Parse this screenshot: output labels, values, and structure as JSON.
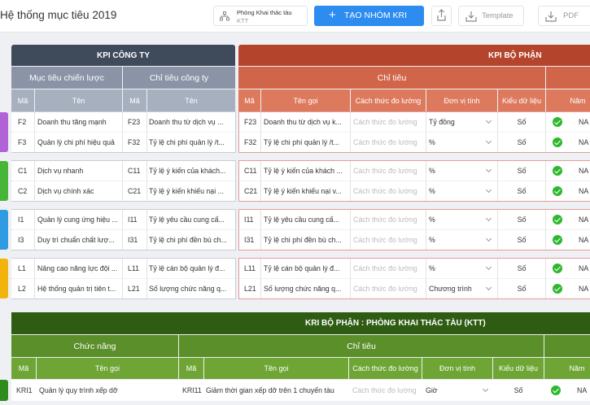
{
  "topbar": {
    "title": "Hệ thống mục tiêu 2019",
    "unit_line1": "Phòng Khai thác tàu",
    "unit_line2": "KTT",
    "add_label": "TẠO NHÓM KRI",
    "template_label": "Template",
    "pdf_label": "PDF",
    "accent": "#2d8cf0"
  },
  "kpi_company": {
    "title": "KPI CÔNG TY",
    "col_strategy": "Mục tiêu chiến lược",
    "col_company": "Chỉ tiêu công ty",
    "h_ma": "Mã",
    "h_ten": "Tên",
    "h_ma2": "Mã",
    "h_ten2": "Tên",
    "color": "#3f4b5b"
  },
  "kpi_dept": {
    "title": "KPI BỘ PHẬN",
    "col_chitieu": "Chỉ tiêu",
    "h_ma": "Mã",
    "h_tengoi": "Tên gọi",
    "h_cachthuc": "Cách thức đo lường",
    "h_donvi": "Đơn vị tính",
    "h_kieu": "Kiểu dữ liệu",
    "h_nam": "Năm",
    "color": "#b5442c"
  },
  "rows": [
    {
      "group": 0,
      "m": "F2",
      "t": "Doanh thu tăng mạnh",
      "cm": "F23",
      "ct": "Doanh thu từ dịch vụ ...",
      "dm": "F23",
      "dt": "Doanh thu từ dịch vụ k...",
      "way": "Cách thức đo lường",
      "unit": "Tỷ đồng",
      "type": "Số",
      "year": "NA"
    },
    {
      "group": 0,
      "m": "F3",
      "t": "Quản lý chi phí hiệu quả",
      "cm": "F32",
      "ct": "Tỷ lệ chi phí quản lý /t...",
      "dm": "F32",
      "dt": "Tỷ lệ chi phí quản lý /t...",
      "way": "Cách thức đo lường",
      "unit": "%",
      "type": "Số",
      "year": "NA"
    },
    {
      "group": 1,
      "m": "C1",
      "t": "Dịch vụ nhanh",
      "cm": "C11",
      "ct": "Tỷ lệ ý kiến của khách...",
      "dm": "C11",
      "dt": "Tỷ lệ ý kiến của khách ...",
      "way": "Cách thức đo lường",
      "unit": "%",
      "type": "Số",
      "year": "NA"
    },
    {
      "group": 1,
      "m": "C2",
      "t": "Dịch vụ chính xác",
      "cm": "C21",
      "ct": "Tỷ lệ ý kiến khiếu nại ...",
      "dm": "C21",
      "dt": "Tỷ lệ ý kiến khiếu nại v...",
      "way": "Cách thức đo lường",
      "unit": "%",
      "type": "Số",
      "year": "NA"
    },
    {
      "group": 2,
      "m": "I1",
      "t": "Quản lý cung ứng hiệu ...",
      "cm": "I11",
      "ct": "Tỷ lệ yêu cầu cung cấ...",
      "dm": "I11",
      "dt": "Tỷ lệ yêu cầu cung cấ...",
      "way": "Cách thức đo lường",
      "unit": "%",
      "type": "Số",
      "year": "NA"
    },
    {
      "group": 2,
      "m": "I3",
      "t": "Duy trì chuẩn chất lượ...",
      "cm": "I31",
      "ct": "Tỷ lệ chi phí đền bù ch...",
      "dm": "I31",
      "dt": "Tỷ lệ chi phí đền bù ch...",
      "way": "Cách thức đo lường",
      "unit": "%",
      "type": "Số",
      "year": "NA"
    },
    {
      "group": 3,
      "m": "L1",
      "t": "Nâng cao năng lực đội ...",
      "cm": "L11",
      "ct": "Tỷ lệ cán bộ quản lý đ...",
      "dm": "L11",
      "dt": "Tỷ lệ cán bộ quản lý đ...",
      "way": "Cách thức đo lường",
      "unit": "%",
      "type": "Số",
      "year": "NA"
    },
    {
      "group": 3,
      "m": "L2",
      "t": "Hệ thống quản trị tiên t...",
      "cm": "L21",
      "ct": "Số lượng chức năng q...",
      "dm": "L21",
      "dt": "Số lượng chức năng q...",
      "way": "Cách thức đo lường",
      "unit": "Chương trình",
      "type": "Số",
      "year": "NA"
    }
  ],
  "group_colors": [
    "#b062d6",
    "#47b535",
    "#2f9be0",
    "#f2b30c"
  ],
  "kri": {
    "title": "KRI BỘ PHẬN : PHÒNG KHAI THÁC TÀU (KTT)",
    "col_chucnang": "Chức năng",
    "col_chitieu": "Chỉ tiêu",
    "h_ma": "Mã",
    "h_tengoi": "Tên gọi",
    "h_ma2": "Mã",
    "h_tengoi2": "Tên gọi",
    "h_cachthuc": "Cách thức đo lường",
    "h_donvi": "Đơn vị tính",
    "h_kieu": "Kiểu dữ liệu",
    "h_nam": "Năm",
    "color_dark": "#2e5c13",
    "color_mid": "#5a8f2a",
    "row": {
      "m": "KRI1",
      "t": "Quản lý quy trình xếp dỡ",
      "cm": "KRI11",
      "ct": "Giảm thời gian xếp dỡ trên 1 chuyến tàu",
      "way": "Cách thức đo lường",
      "unit": "Giờ",
      "type": "Số",
      "year": "NA"
    }
  }
}
